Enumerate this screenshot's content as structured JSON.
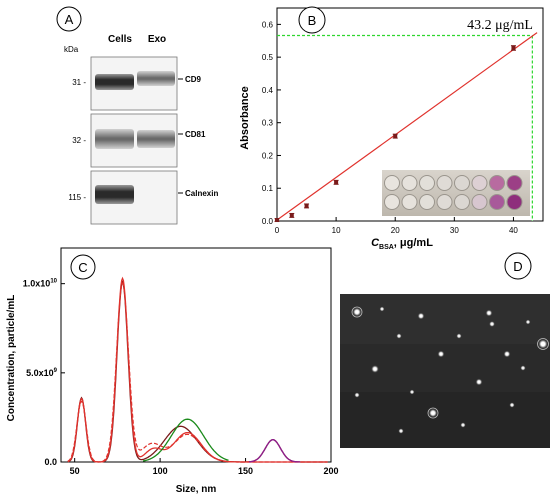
{
  "colors": {
    "red_fit": "#e0322d",
    "data_line": "#7a1b1b",
    "green_fit": "#1a8a1a",
    "purple_fit": "#8e1e8e",
    "dashed_red": "#e0322d",
    "green_dotted": "#2fd62f",
    "axis": "#000000"
  },
  "panels": {
    "A": {
      "label": "A",
      "kda_label": "kDa",
      "col_headers": [
        "Cells",
        "Exo"
      ],
      "rows": [
        {
          "kda": "31 -",
          "marker": "CD9",
          "bands": [
            1,
            1
          ]
        },
        {
          "kda": "32 -",
          "marker": "CD81",
          "bands": [
            1,
            1
          ]
        },
        {
          "kda": "115 -",
          "marker": "Calnexin",
          "bands": [
            1,
            0
          ]
        }
      ]
    },
    "B": {
      "label": "B"
    },
    "C": {
      "label": "C"
    },
    "D": {
      "label": "D"
    }
  },
  "chart_data": [
    {
      "id": "B",
      "type": "scatter",
      "title": "",
      "xlabel_main": "C",
      "xlabel_sub": "BSA",
      "xlabel_rest": ", μg/mL",
      "ylabel": "Absorbance",
      "xlim": [
        0,
        45
      ],
      "ylim": [
        0,
        0.65
      ],
      "xticks": [
        0,
        10,
        20,
        30,
        40
      ],
      "yticks": [
        0.0,
        0.1,
        0.2,
        0.3,
        0.4,
        0.5,
        0.6
      ],
      "ytick_labels": [
        "0.0",
        "0.1",
        "0.2",
        "0.3",
        "0.4",
        "0.5",
        "0.6"
      ],
      "points": [
        {
          "x": 0,
          "y": 0.003,
          "err": 0.004
        },
        {
          "x": 2.5,
          "y": 0.017,
          "err": 0.006
        },
        {
          "x": 5,
          "y": 0.046,
          "err": 0.006
        },
        {
          "x": 10,
          "y": 0.118,
          "err": 0.006
        },
        {
          "x": 20,
          "y": 0.259,
          "err": 0.006
        },
        {
          "x": 40,
          "y": 0.528,
          "err": 0.007
        }
      ],
      "fit_line": {
        "x": [
          0,
          44
        ],
        "y": [
          0.003,
          0.575
        ]
      },
      "guide": {
        "x": 43.2,
        "y": 0.566
      },
      "annotation": "43.2 μg/mL"
    },
    {
      "id": "C",
      "type": "line",
      "title": "",
      "xlabel": "Size, nm",
      "ylabel": "Concentration, particle/mL",
      "xlim": [
        42,
        200
      ],
      "ylim": [
        0,
        12000000000.0
      ],
      "xticks": [
        50,
        100,
        150,
        200
      ],
      "yticks": [
        0,
        5000000000.0,
        10000000000.0
      ],
      "ytick_labels": [
        {
          "mant": "0.0",
          "exp": ""
        },
        {
          "mant": "5.0x10",
          "exp": "9"
        },
        {
          "mant": "1.0x10",
          "exp": "10"
        }
      ],
      "series": [
        {
          "kind": "data",
          "peaks": [
            [
              54,
              3600000000.0,
              2.4
            ],
            [
              78,
              10100000000.0,
              3.2
            ],
            [
              112,
              2000000000.0,
              9.5
            ],
            [
              166,
              1250000000.0,
              4.5
            ]
          ]
        },
        {
          "kind": "red_fit",
          "peaks": [
            [
              54,
              3550000000.0,
              2.5
            ],
            [
              78,
              10300000000.0,
              3.3
            ],
            [
              96,
              700000000.0,
              5
            ],
            [
              116,
              1650000000.0,
              8
            ]
          ]
        },
        {
          "kind": "red_dashed",
          "peaks": [
            [
              54,
              3400000000.0,
              2.7
            ],
            [
              78,
              10000000000.0,
              3.5
            ],
            [
              95,
              1000000000.0,
              6
            ],
            [
              116,
              1550000000.0,
              8
            ]
          ]
        },
        {
          "kind": "green_fit",
          "peaks": [
            [
              116,
              2400000000.0,
              9.5
            ]
          ],
          "range": [
            90,
            140
          ]
        },
        {
          "kind": "purple_fit",
          "peaks": [
            [
              166,
              1250000000.0,
              4.5
            ]
          ],
          "range": [
            152,
            182
          ]
        }
      ]
    }
  ]
}
